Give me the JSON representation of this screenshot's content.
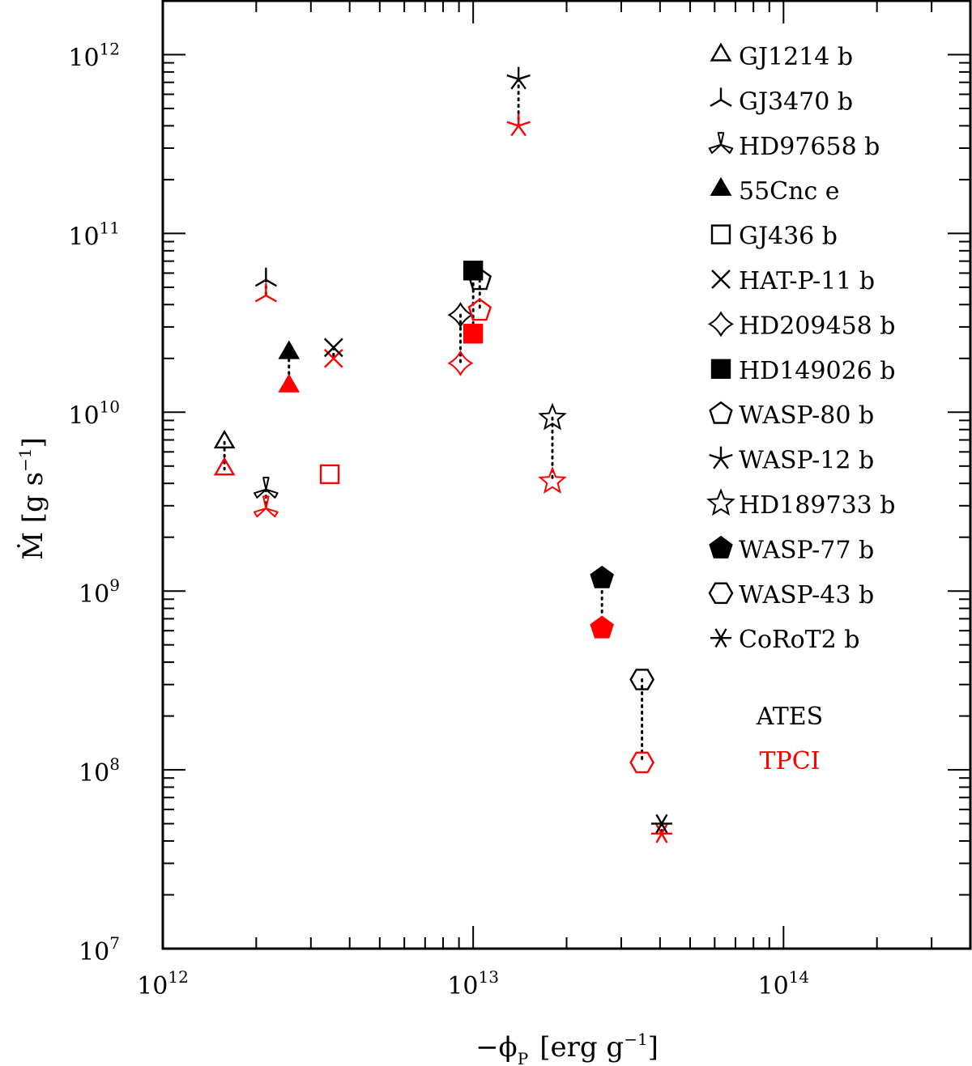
{
  "chart_data": {
    "type": "scatter",
    "title": "",
    "xlabel": "−ϕ",
    "xlabel_sub": "P",
    "xlabel_units": "[erg g",
    "xlabel_units_exp": "−1",
    "xlabel_units_close": "]",
    "ylabel": "Ṁ [g s",
    "ylabel_exp": "−1",
    "ylabel_close": "]",
    "xscale": "log",
    "yscale": "log",
    "xlim": [
      1000000000000.0,
      400000000000000.0
    ],
    "ylim": [
      10000000.0,
      2000000000000.0
    ],
    "x_ticks": [
      {
        "value": 1000000000000.0,
        "base": "10",
        "exp": "12"
      },
      {
        "value": 10000000000000.0,
        "base": "10",
        "exp": "13"
      },
      {
        "value": 100000000000000.0,
        "base": "10",
        "exp": "14"
      }
    ],
    "y_ticks": [
      {
        "value": 10000000.0,
        "base": "10",
        "exp": "7"
      },
      {
        "value": 100000000.0,
        "base": "10",
        "exp": "8"
      },
      {
        "value": 1000000000.0,
        "base": "10",
        "exp": "9"
      },
      {
        "value": 10000000000.0,
        "base": "10",
        "exp": "10"
      },
      {
        "value": 100000000000.0,
        "base": "10",
        "exp": "11"
      },
      {
        "value": 1000000000000.0,
        "base": "10",
        "exp": "12"
      }
    ],
    "series_legend": [
      {
        "name": "ATES",
        "color": "#000000"
      },
      {
        "name": "TPCI",
        "color": "#ff0000"
      }
    ],
    "colors": {
      "ates": "#000000",
      "tpci": "#ff0000",
      "connector": "#000000"
    },
    "planets": [
      {
        "name": "GJ1214 b",
        "marker": "triangle",
        "filled": false,
        "x": 1580000000000.0,
        "ates": 6800000000.0,
        "tpci": 4800000000.0
      },
      {
        "name": "GJ3470 b",
        "marker": "tripod",
        "filled": false,
        "x": 2150000000000.0,
        "ates": 55000000000.0,
        "tpci": 45000000000.0
      },
      {
        "name": "HD97658 b",
        "marker": "tripod-open",
        "filled": false,
        "x": 2150000000000.0,
        "ates": 3700000000.0,
        "tpci": 2900000000.0
      },
      {
        "name": "55Cnc e",
        "marker": "triangle",
        "filled": true,
        "x": 2550000000000.0,
        "ates": 21500000000.0,
        "tpci": 14000000000.0
      },
      {
        "name": "GJ436 b",
        "marker": "square",
        "filled": false,
        "x": 3450000000000.0,
        "ates": null,
        "tpci": 4500000000.0
      },
      {
        "name": "HAT-P-11 b",
        "marker": "cross",
        "filled": false,
        "x": 3550000000000.0,
        "ates": 23000000000.0,
        "tpci": 20000000000.0
      },
      {
        "name": "HD209458 b",
        "marker": "star4",
        "filled": false,
        "x": 9100000000000.0,
        "ates": 35000000000.0,
        "tpci": 18800000000.0
      },
      {
        "name": "HD149026 b",
        "marker": "square",
        "filled": true,
        "x": 10000000000000.0,
        "ates": 62000000000.0,
        "tpci": 27500000000.0
      },
      {
        "name": "WASP-80 b",
        "marker": "pentagon",
        "filled": false,
        "x": 10500000000000.0,
        "ates": 55000000000.0,
        "tpci": 37000000000.0
      },
      {
        "name": "WASP-12 b",
        "marker": "asterisk",
        "filled": false,
        "x": 14000000000000.0,
        "ates": 730000000000.0,
        "tpci": 400000000000.0
      },
      {
        "name": "HD189733 b",
        "marker": "star5",
        "filled": false,
        "x": 18000000000000.0,
        "ates": 9300000000.0,
        "tpci": 4100000000.0
      },
      {
        "name": "WASP-77 b",
        "marker": "pentagon",
        "filled": true,
        "x": 26000000000000.0,
        "ates": 1180000000.0,
        "tpci": 620000000.0
      },
      {
        "name": "WASP-43 b",
        "marker": "hexagon",
        "filled": false,
        "x": 35000000000000.0,
        "ates": 320000000.0,
        "tpci": 110000000.0
      },
      {
        "name": "CoRoT2 b",
        "marker": "asterisk6",
        "filled": false,
        "x": 40500000000000.0,
        "ates": 50000000.0,
        "tpci": 44000000.0
      }
    ]
  }
}
